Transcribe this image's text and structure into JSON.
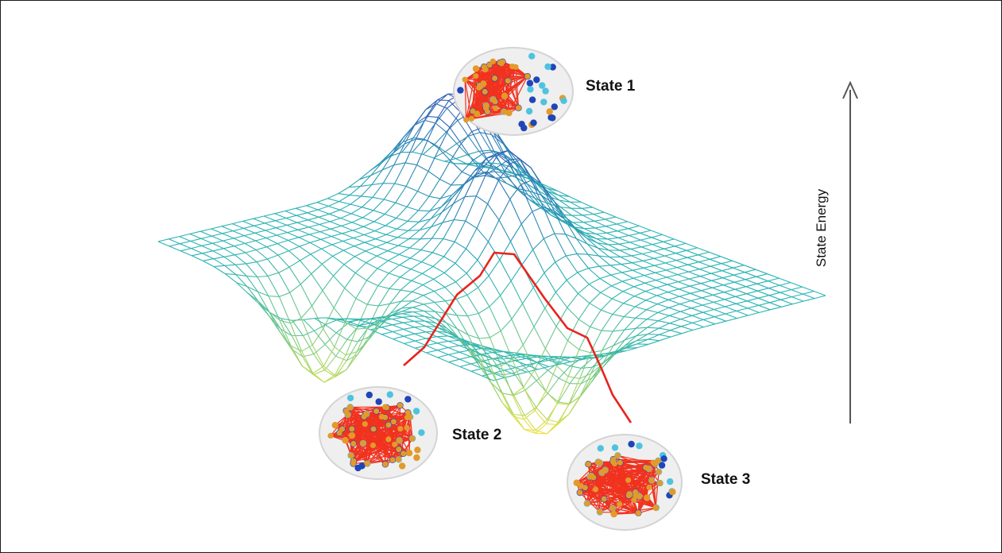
{
  "figure": {
    "states": [
      {
        "id": "state-1",
        "label": "State 1"
      },
      {
        "id": "state-2",
        "label": "State 2"
      },
      {
        "id": "state-3",
        "label": "State 3"
      }
    ],
    "axis": {
      "label": "State Energy",
      "direction": "up"
    },
    "colors": {
      "mesh_high": "#2f49b8",
      "mesh_mid": "#2ab3b3",
      "mesh_low": "#8fd17a",
      "mesh_bottom": "#f2e23a",
      "transition_path": "#e8231c",
      "network_edges": "#f0321f",
      "node_dark": "#1f45b8",
      "node_light": "#4ec3e0",
      "node_orange": "#e39a2a",
      "brain_outline": "#d4d4d4",
      "axis_arrow": "#555555"
    }
  }
}
